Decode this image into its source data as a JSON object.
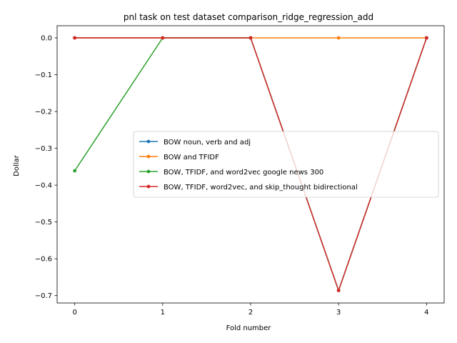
{
  "chart_data": {
    "type": "line",
    "title": "pnl task on test dataset comparison_ridge_regression_add",
    "xlabel": "Fold number",
    "ylabel": "Dollar",
    "x": [
      0,
      1,
      2,
      3,
      4
    ],
    "x_ticks": [
      "0",
      "1",
      "2",
      "3",
      "4"
    ],
    "y_ticks": [
      "0.0",
      "−0.1",
      "−0.2",
      "−0.3",
      "−0.4",
      "−0.5",
      "−0.6",
      "−0.7"
    ],
    "xlim": [
      -0.2,
      4.2
    ],
    "ylim": [
      -0.72,
      0.033
    ],
    "grid": false,
    "legend_position": "center-right",
    "series": [
      {
        "name": "BOW noun, verb and adj",
        "color": "#1f77b4",
        "values": [
          0.0,
          0.0,
          0.0,
          -0.686,
          0.0
        ]
      },
      {
        "name": "BOW and TFIDF",
        "color": "#ff7f0e",
        "values": [
          0.0,
          0.0,
          0.0,
          0.0,
          0.0
        ]
      },
      {
        "name": "BOW, TFIDF, and word2vec google news 300",
        "color": "#2ca02c",
        "values": [
          -0.361,
          0.0,
          0.0,
          -0.686,
          0.0
        ]
      },
      {
        "name": "BOW, TFIDF, word2vec, and skip_thought bidirectional",
        "color": "#d62728",
        "values": [
          0.0,
          0.0,
          0.0,
          -0.686,
          0.0
        ]
      }
    ]
  }
}
